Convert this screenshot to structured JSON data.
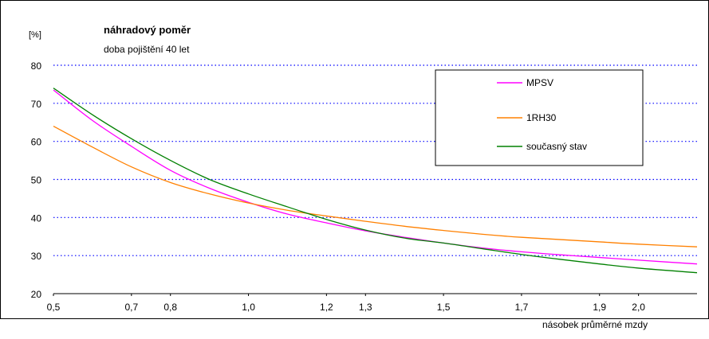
{
  "chart_data": {
    "type": "line",
    "title": "náhradový poměr",
    "subtitle": "doba pojištění 40 let",
    "ylabel": "[%]",
    "xlabel": "násobek průměrné mzdy",
    "ylim": [
      20,
      80
    ],
    "xlim": [
      0.5,
      2.15
    ],
    "yticks": [
      20,
      30,
      40,
      50,
      60,
      70,
      80
    ],
    "ytick_labels": [
      "20",
      "30",
      "40",
      "50",
      "60",
      "70",
      "80"
    ],
    "xticks": [
      0.5,
      0.7,
      0.8,
      1.0,
      1.2,
      1.3,
      1.5,
      1.7,
      1.9,
      2.0
    ],
    "xtick_labels": [
      "0,5",
      "0,7",
      "0,8",
      "1,0",
      "1,2",
      "1,3",
      "1,5",
      "1,7",
      "1,9",
      "2,0"
    ],
    "grid": "horizontal dotted",
    "legend_position": "top-right",
    "series": [
      {
        "name": "MPSV",
        "color": "#ff00ff",
        "points": [
          [
            0.5,
            73.5
          ],
          [
            0.6,
            65.5
          ],
          [
            0.7,
            58.7
          ],
          [
            0.8,
            52.4
          ],
          [
            0.9,
            47.7
          ],
          [
            1.0,
            44.0
          ],
          [
            1.1,
            40.9
          ],
          [
            1.2,
            38.6
          ],
          [
            1.3,
            36.5
          ],
          [
            1.4,
            34.8
          ],
          [
            1.5,
            33.3
          ],
          [
            1.6,
            32.0
          ],
          [
            1.7,
            31.0
          ],
          [
            1.8,
            30.2
          ],
          [
            1.9,
            29.5
          ],
          [
            2.0,
            28.8
          ],
          [
            2.15,
            27.8
          ]
        ]
      },
      {
        "name": "1RH30",
        "color": "#ff8000",
        "points": [
          [
            0.5,
            64.0
          ],
          [
            0.6,
            58.5
          ],
          [
            0.7,
            53.3
          ],
          [
            0.8,
            49.2
          ],
          [
            0.9,
            46.2
          ],
          [
            1.0,
            43.8
          ],
          [
            1.1,
            41.9
          ],
          [
            1.2,
            40.4
          ],
          [
            1.3,
            39.0
          ],
          [
            1.4,
            37.7
          ],
          [
            1.5,
            36.6
          ],
          [
            1.6,
            35.6
          ],
          [
            1.7,
            34.8
          ],
          [
            1.8,
            34.2
          ],
          [
            1.9,
            33.6
          ],
          [
            2.0,
            33.0
          ],
          [
            2.15,
            32.3
          ]
        ]
      },
      {
        "name": "současný stav",
        "color": "#008000",
        "points": [
          [
            0.5,
            74.0
          ],
          [
            0.6,
            67.0
          ],
          [
            0.7,
            60.7
          ],
          [
            0.8,
            55.0
          ],
          [
            0.9,
            50.0
          ],
          [
            1.0,
            46.2
          ],
          [
            1.1,
            42.8
          ],
          [
            1.2,
            39.5
          ],
          [
            1.3,
            36.7
          ],
          [
            1.4,
            34.6
          ],
          [
            1.5,
            33.3
          ],
          [
            1.6,
            31.8
          ],
          [
            1.7,
            30.3
          ],
          [
            1.8,
            29.0
          ],
          [
            1.9,
            27.8
          ],
          [
            2.0,
            26.7
          ],
          [
            2.15,
            25.5
          ]
        ]
      }
    ]
  }
}
